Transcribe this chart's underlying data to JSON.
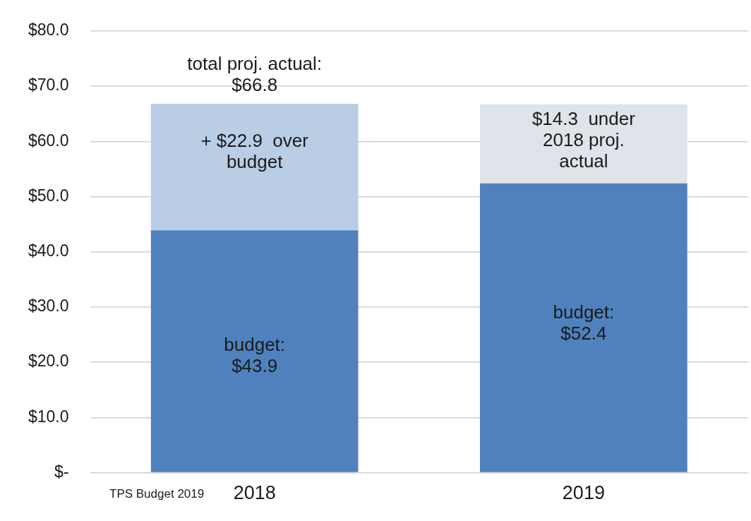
{
  "chart_data": {
    "type": "bar",
    "stacked": true,
    "categories": [
      "2018",
      "2019"
    ],
    "series": [
      {
        "color": "#4f81bd",
        "values": [
          43.9,
          52.4
        ]
      },
      {
        "color": "#b9cde5",
        "values": [
          22.9,
          null
        ]
      },
      {
        "color": "#dfe4ea",
        "values": [
          null,
          14.3
        ]
      }
    ],
    "ylim": [
      0,
      80
    ],
    "yticks": [
      {
        "value": 0,
        "label": "$-"
      },
      {
        "value": 10,
        "label": "$10.0"
      },
      {
        "value": 20,
        "label": "$20.0"
      },
      {
        "value": 30,
        "label": "$30.0"
      },
      {
        "value": 40,
        "label": "$40.0"
      },
      {
        "value": 50,
        "label": "$50.0"
      },
      {
        "value": 60,
        "label": "$60.0"
      },
      {
        "value": 70,
        "label": "$70.0"
      },
      {
        "value": 80,
        "label": "$80.0"
      }
    ],
    "grid": "y",
    "legend": false,
    "annotations": [
      "total proj. actual:\n$66.8",
      "+ $22.9  over\nbudget",
      "budget:\n$43.9",
      "$14.3  under\n2018 proj.\nactual",
      "budget:\n$52.4",
      "TPS Budget 2019"
    ]
  }
}
